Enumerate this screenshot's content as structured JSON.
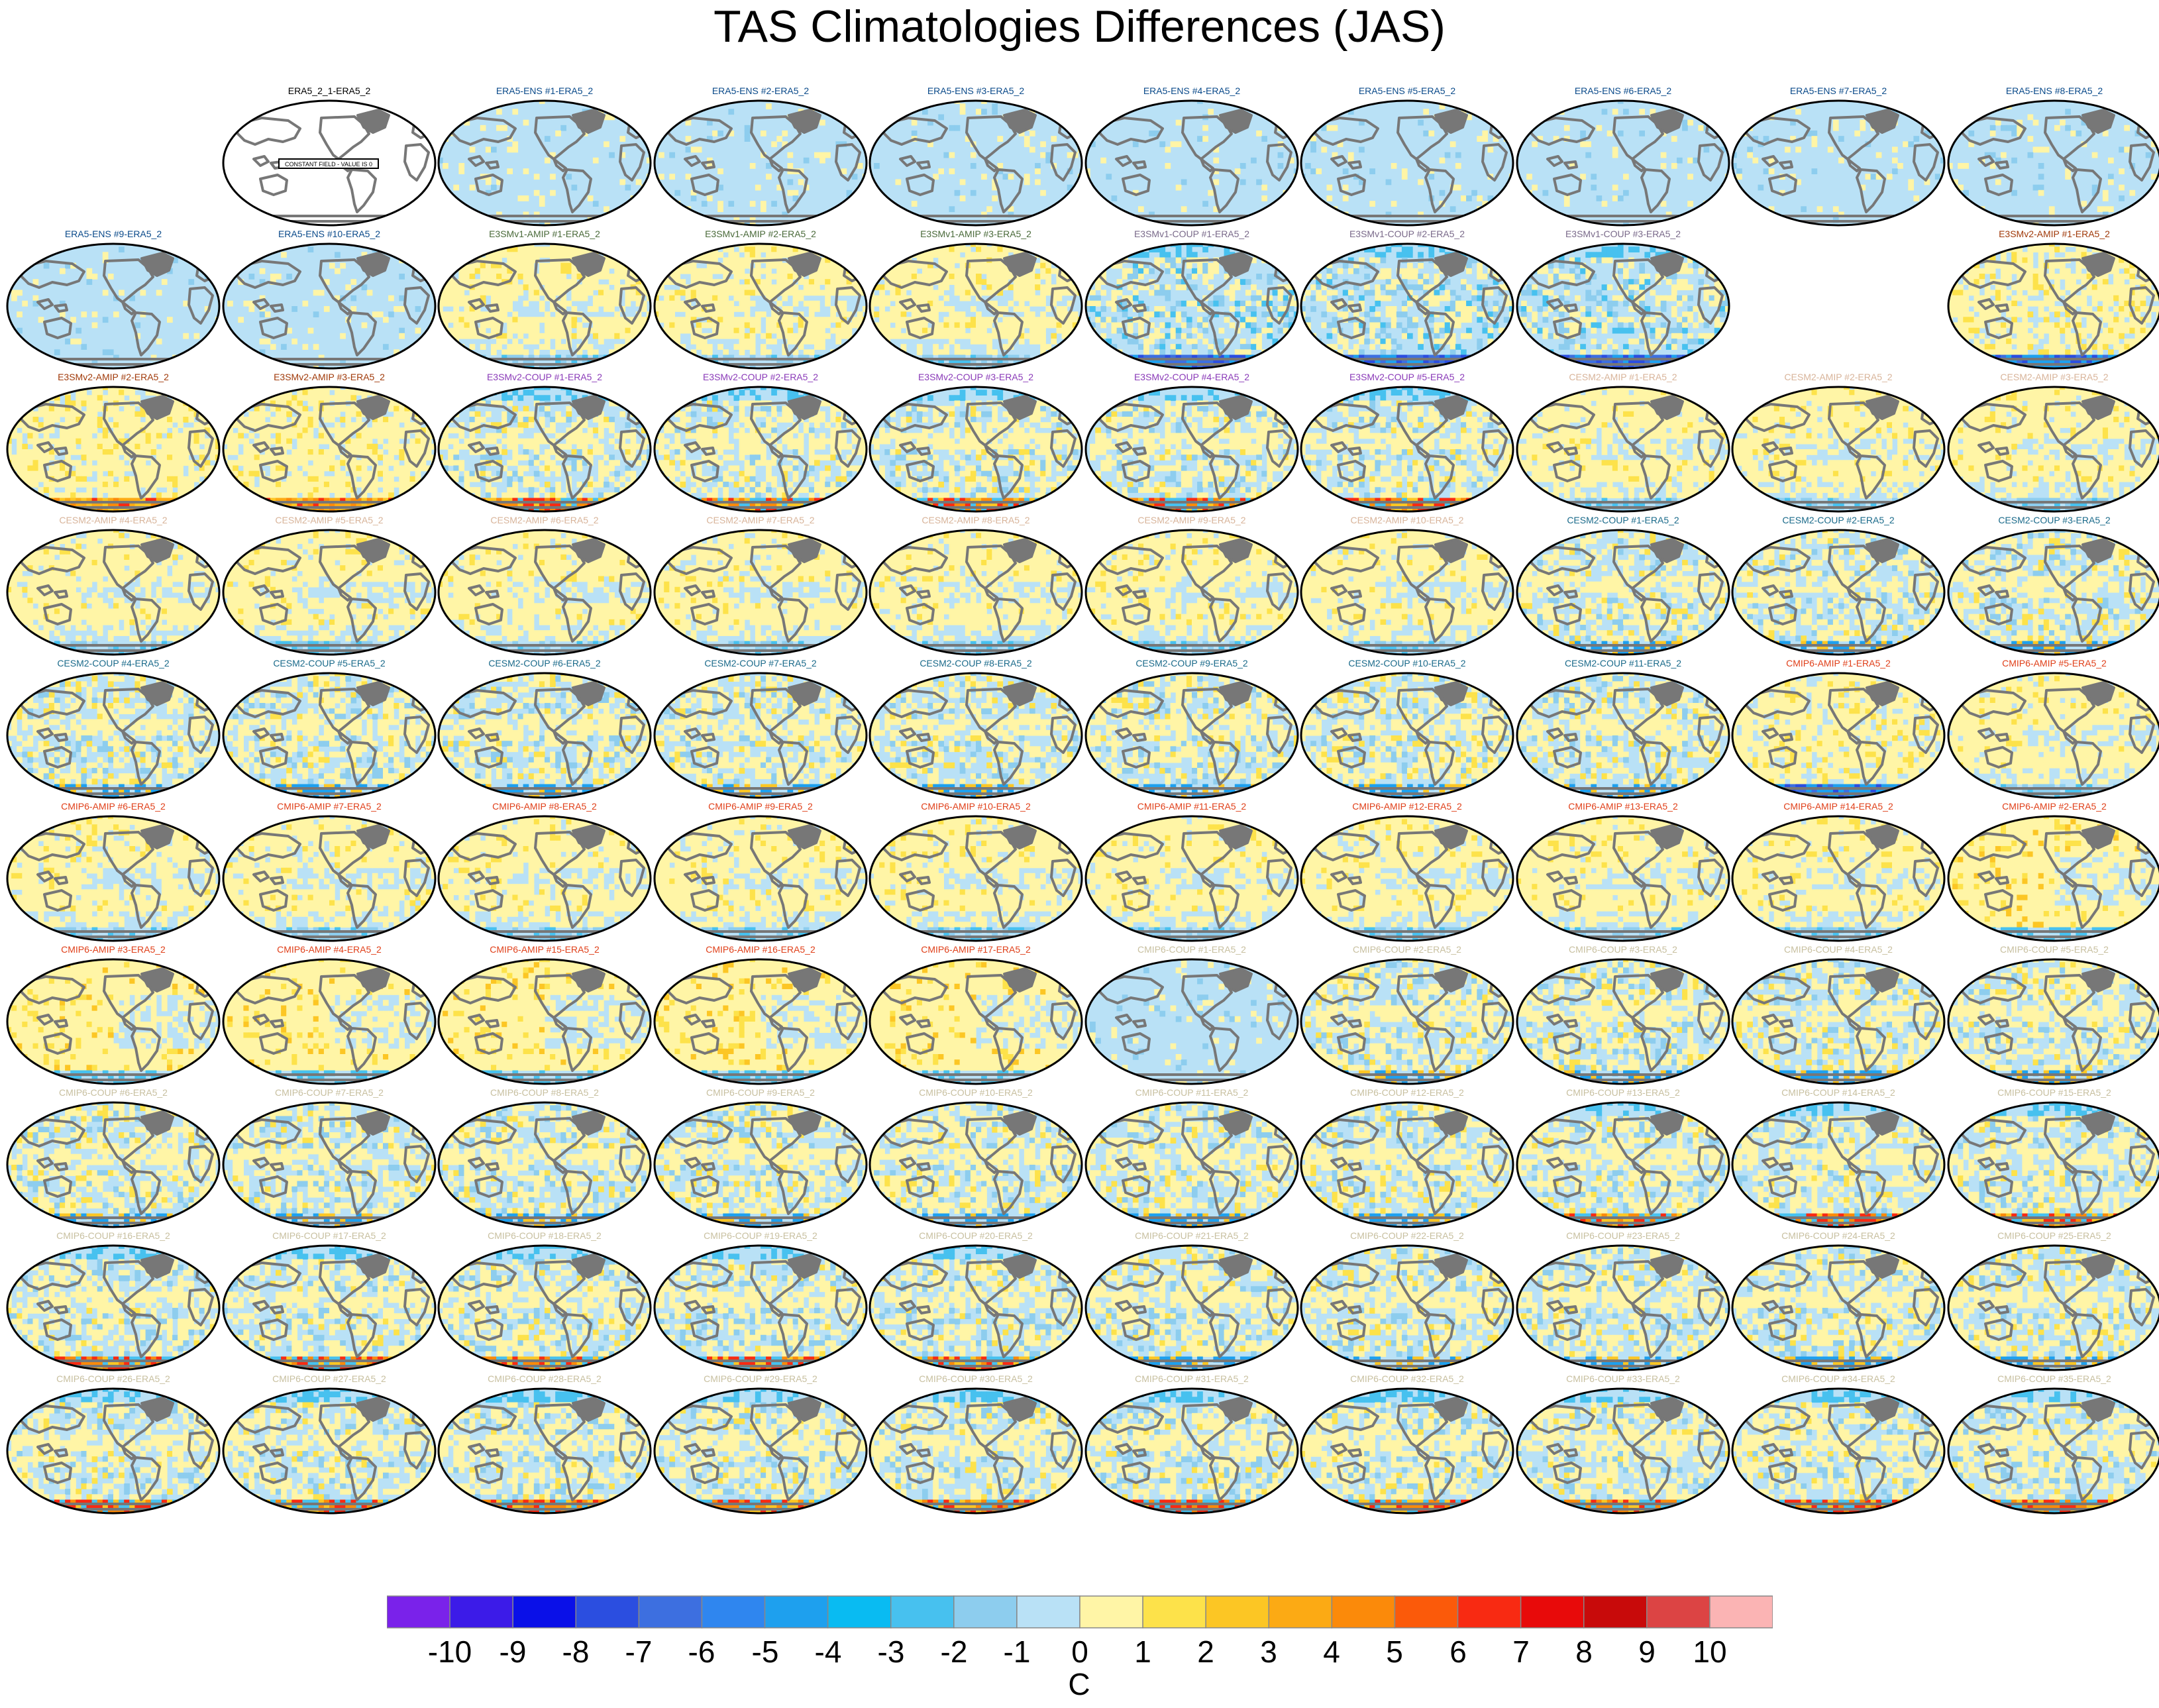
{
  "title": "TAS Climatologies Differences (JAS)",
  "units": "C",
  "constant_field_note": "CONSTANT FIELD - VALUE IS 0",
  "colorbar": {
    "ticks": [
      "-10",
      "-9",
      "-8",
      "-7",
      "-6",
      "-5",
      "-4",
      "-3",
      "-2",
      "-1",
      "0",
      "1",
      "2",
      "3",
      "4",
      "5",
      "6",
      "7",
      "8",
      "9",
      "10"
    ],
    "colors": [
      "#7a22ea",
      "#3c1be8",
      "#0a10e8",
      "#2b4ee0",
      "#3d6fe0",
      "#2f86ef",
      "#1ea0ee",
      "#09bbf2",
      "#47c1ef",
      "#8dcdee",
      "#b9e1f6",
      "#fff5a6",
      "#fde24a",
      "#fcc624",
      "#fcaa14",
      "#fb8a0a",
      "#fb5a0a",
      "#f82a12",
      "#e80a0a",
      "#c80a0a",
      "#dc4444",
      "#fbb4b4"
    ]
  },
  "palette": {
    "ERA5": "#000000",
    "ENS": "#0a4a8a",
    "E3SMv1-AMIP": "#4a6a3a",
    "E3SMv1-COUP": "#7a6a8a",
    "E3SMv2-AMIP": "#a03a0a",
    "E3SMv2-COUP": "#8a3ab8",
    "CESM2-AMIP": "#d8b49a",
    "CESM2-COUP": "#1a6a8a",
    "CMIP6-AMIP": "#e0401a",
    "CMIP6-COUP": "#c8c0a0"
  },
  "panels": [
    {
      "label": "ERA5_2_1-ERA5_2",
      "group": "ERA5",
      "tone": "empty"
    },
    {
      "label": "ERA5-ENS   #1-ERA5_2",
      "group": "ENS",
      "tone": "cool"
    },
    {
      "label": "ERA5-ENS   #2-ERA5_2",
      "group": "ENS",
      "tone": "cool"
    },
    {
      "label": "ERA5-ENS   #3-ERA5_2",
      "group": "ENS",
      "tone": "cool"
    },
    {
      "label": "ERA5-ENS   #4-ERA5_2",
      "group": "ENS",
      "tone": "cool"
    },
    {
      "label": "ERA5-ENS   #5-ERA5_2",
      "group": "ENS",
      "tone": "cool"
    },
    {
      "label": "ERA5-ENS   #6-ERA5_2",
      "group": "ENS",
      "tone": "cool"
    },
    {
      "label": "ERA5-ENS   #7-ERA5_2",
      "group": "ENS",
      "tone": "cool"
    },
    {
      "label": "ERA5-ENS   #8-ERA5_2",
      "group": "ENS",
      "tone": "cool"
    },
    {
      "label": "ERA5-ENS   #9-ERA5_2",
      "group": "ENS",
      "tone": "cool"
    },
    {
      "label": "ERA5-ENS   #10-ERA5_2",
      "group": "ENS",
      "tone": "cool"
    },
    {
      "label": "E3SMv1-AMIP #1-ERA5_2",
      "group": "E3SMv1-AMIP",
      "tone": "warm"
    },
    {
      "label": "E3SMv1-AMIP #2-ERA5_2",
      "group": "E3SMv1-AMIP",
      "tone": "warm"
    },
    {
      "label": "E3SMv1-AMIP #3-ERA5_2",
      "group": "E3SMv1-AMIP",
      "tone": "warm"
    },
    {
      "label": "E3SMv1-COUP #1-ERA5_2",
      "group": "E3SMv1-COUP",
      "tone": "mixed-cold"
    },
    {
      "label": "E3SMv1-COUP #2-ERA5_2",
      "group": "E3SMv1-COUP",
      "tone": "mixed-cold"
    },
    {
      "label": "E3SMv1-COUP #3-ERA5_2",
      "group": "E3SMv1-COUP",
      "tone": "mixed-cold"
    },
    null,
    {
      "label": "E3SMv2-AMIP #1-ERA5_2",
      "group": "E3SMv2-AMIP",
      "tone": "warm-cold"
    },
    {
      "label": "E3SMv2-AMIP #2-ERA5_2",
      "group": "E3SMv2-AMIP",
      "tone": "warm-hot"
    },
    {
      "label": "E3SMv2-AMIP #3-ERA5_2",
      "group": "E3SMv2-AMIP",
      "tone": "warm-hot"
    },
    {
      "label": "E3SMv2-COUP #1-ERA5_2",
      "group": "E3SMv2-COUP",
      "tone": "mixed-hot"
    },
    {
      "label": "E3SMv2-COUP #2-ERA5_2",
      "group": "E3SMv2-COUP",
      "tone": "mixed-hot"
    },
    {
      "label": "E3SMv2-COUP #3-ERA5_2",
      "group": "E3SMv2-COUP",
      "tone": "mixed-hot"
    },
    {
      "label": "E3SMv2-COUP #4-ERA5_2",
      "group": "E3SMv2-COUP",
      "tone": "mixed-hot"
    },
    {
      "label": "E3SMv2-COUP #5-ERA5_2",
      "group": "E3SMv2-COUP",
      "tone": "mixed-hot"
    },
    {
      "label": "CESM2-AMIP  #1-ERA5_2",
      "group": "CESM2-AMIP",
      "tone": "warm"
    },
    {
      "label": "CESM2-AMIP  #2-ERA5_2",
      "group": "CESM2-AMIP",
      "tone": "warm"
    },
    {
      "label": "CESM2-AMIP  #3-ERA5_2",
      "group": "CESM2-AMIP",
      "tone": "warm"
    },
    {
      "label": "CESM2-AMIP  #4-ERA5_2",
      "group": "CESM2-AMIP",
      "tone": "warm"
    },
    {
      "label": "CESM2-AMIP  #5-ERA5_2",
      "group": "CESM2-AMIP",
      "tone": "warm"
    },
    {
      "label": "CESM2-AMIP  #6-ERA5_2",
      "group": "CESM2-AMIP",
      "tone": "warm"
    },
    {
      "label": "CESM2-AMIP  #7-ERA5_2",
      "group": "CESM2-AMIP",
      "tone": "warm"
    },
    {
      "label": "CESM2-AMIP  #8-ERA5_2",
      "group": "CESM2-AMIP",
      "tone": "warm"
    },
    {
      "label": "CESM2-AMIP  #9-ERA5_2",
      "group": "CESM2-AMIP",
      "tone": "warm"
    },
    {
      "label": "CESM2-AMIP  #10-ERA5_2",
      "group": "CESM2-AMIP",
      "tone": "warm"
    },
    {
      "label": "CESM2-COUP  #1-ERA5_2",
      "group": "CESM2-COUP",
      "tone": "mixed"
    },
    {
      "label": "CESM2-COUP  #2-ERA5_2",
      "group": "CESM2-COUP",
      "tone": "mixed"
    },
    {
      "label": "CESM2-COUP  #3-ERA5_2",
      "group": "CESM2-COUP",
      "tone": "mixed"
    },
    {
      "label": "CESM2-COUP  #4-ERA5_2",
      "group": "CESM2-COUP",
      "tone": "mixed"
    },
    {
      "label": "CESM2-COUP  #5-ERA5_2",
      "group": "CESM2-COUP",
      "tone": "mixed"
    },
    {
      "label": "CESM2-COUP  #6-ERA5_2",
      "group": "CESM2-COUP",
      "tone": "mixed"
    },
    {
      "label": "CESM2-COUP  #7-ERA5_2",
      "group": "CESM2-COUP",
      "tone": "mixed"
    },
    {
      "label": "CESM2-COUP  #8-ERA5_2",
      "group": "CESM2-COUP",
      "tone": "mixed"
    },
    {
      "label": "CESM2-COUP  #9-ERA5_2",
      "group": "CESM2-COUP",
      "tone": "mixed"
    },
    {
      "label": "CESM2-COUP  #10-ERA5_2",
      "group": "CESM2-COUP",
      "tone": "mixed"
    },
    {
      "label": "CESM2-COUP  #11-ERA5_2",
      "group": "CESM2-COUP",
      "tone": "mixed"
    },
    {
      "label": "CMIP6-AMIP  #1-ERA5_2",
      "group": "CMIP6-AMIP",
      "tone": "warm-cold"
    },
    {
      "label": "CMIP6-AMIP  #5-ERA5_2",
      "group": "CMIP6-AMIP",
      "tone": "warm"
    },
    {
      "label": "CMIP6-AMIP  #6-ERA5_2",
      "group": "CMIP6-AMIP",
      "tone": "warm"
    },
    {
      "label": "CMIP6-AMIP  #7-ERA5_2",
      "group": "CMIP6-AMIP",
      "tone": "warm"
    },
    {
      "label": "CMIP6-AMIP  #8-ERA5_2",
      "group": "CMIP6-AMIP",
      "tone": "warm"
    },
    {
      "label": "CMIP6-AMIP  #9-ERA5_2",
      "group": "CMIP6-AMIP",
      "tone": "warm"
    },
    {
      "label": "CMIP6-AMIP  #10-ERA5_2",
      "group": "CMIP6-AMIP",
      "tone": "warm"
    },
    {
      "label": "CMIP6-AMIP  #11-ERA5_2",
      "group": "CMIP6-AMIP",
      "tone": "warm"
    },
    {
      "label": "CMIP6-AMIP  #12-ERA5_2",
      "group": "CMIP6-AMIP",
      "tone": "warm"
    },
    {
      "label": "CMIP6-AMIP  #13-ERA5_2",
      "group": "CMIP6-AMIP",
      "tone": "warm"
    },
    {
      "label": "CMIP6-AMIP  #14-ERA5_2",
      "group": "CMIP6-AMIP",
      "tone": "warm"
    },
    {
      "label": "CMIP6-AMIP  #2-ERA5_2",
      "group": "CMIP6-AMIP",
      "tone": "hot"
    },
    {
      "label": "CMIP6-AMIP  #3-ERA5_2",
      "group": "CMIP6-AMIP",
      "tone": "hot"
    },
    {
      "label": "CMIP6-AMIP  #4-ERA5_2",
      "group": "CMIP6-AMIP",
      "tone": "hot"
    },
    {
      "label": "CMIP6-AMIP  #15-ERA5_2",
      "group": "CMIP6-AMIP",
      "tone": "hot"
    },
    {
      "label": "CMIP6-AMIP  #16-ERA5_2",
      "group": "CMIP6-AMIP",
      "tone": "hot"
    },
    {
      "label": "CMIP6-AMIP  #17-ERA5_2",
      "group": "CMIP6-AMIP",
      "tone": "hot"
    },
    {
      "label": "CMIP6-COUP  #1-ERA5_2",
      "group": "CMIP6-COUP",
      "tone": "cool"
    },
    {
      "label": "CMIP6-COUP  #2-ERA5_2",
      "group": "CMIP6-COUP",
      "tone": "mixed"
    },
    {
      "label": "CMIP6-COUP  #3-ERA5_2",
      "group": "CMIP6-COUP",
      "tone": "mixed"
    },
    {
      "label": "CMIP6-COUP  #4-ERA5_2",
      "group": "CMIP6-COUP",
      "tone": "mixed"
    },
    {
      "label": "CMIP6-COUP  #5-ERA5_2",
      "group": "CMIP6-COUP",
      "tone": "mixed"
    },
    {
      "label": "CMIP6-COUP  #6-ERA5_2",
      "group": "CMIP6-COUP",
      "tone": "mixed"
    },
    {
      "label": "CMIP6-COUP  #7-ERA5_2",
      "group": "CMIP6-COUP",
      "tone": "mixed"
    },
    {
      "label": "CMIP6-COUP  #8-ERA5_2",
      "group": "CMIP6-COUP",
      "tone": "mixed"
    },
    {
      "label": "CMIP6-COUP  #9-ERA5_2",
      "group": "CMIP6-COUP",
      "tone": "mixed"
    },
    {
      "label": "CMIP6-COUP  #10-ERA5_2",
      "group": "CMIP6-COUP",
      "tone": "mixed"
    },
    {
      "label": "CMIP6-COUP  #11-ERA5_2",
      "group": "CMIP6-COUP",
      "tone": "mixed"
    },
    {
      "label": "CMIP6-COUP  #12-ERA5_2",
      "group": "CMIP6-COUP",
      "tone": "mixed"
    },
    {
      "label": "CMIP6-COUP  #13-ERA5_2",
      "group": "CMIP6-COUP",
      "tone": "mixed-hot"
    },
    {
      "label": "CMIP6-COUP  #14-ERA5_2",
      "group": "CMIP6-COUP",
      "tone": "mixed-hot"
    },
    {
      "label": "CMIP6-COUP  #15-ERA5_2",
      "group": "CMIP6-COUP",
      "tone": "mixed-hot"
    },
    {
      "label": "CMIP6-COUP  #16-ERA5_2",
      "group": "CMIP6-COUP",
      "tone": "mixed-hot"
    },
    {
      "label": "CMIP6-COUP  #17-ERA5_2",
      "group": "CMIP6-COUP",
      "tone": "mixed-hot"
    },
    {
      "label": "CMIP6-COUP  #18-ERA5_2",
      "group": "CMIP6-COUP",
      "tone": "mixed-hot"
    },
    {
      "label": "CMIP6-COUP  #19-ERA5_2",
      "group": "CMIP6-COUP",
      "tone": "mixed-hot"
    },
    {
      "label": "CMIP6-COUP  #20-ERA5_2",
      "group": "CMIP6-COUP",
      "tone": "mixed-hot"
    },
    {
      "label": "CMIP6-COUP  #21-ERA5_2",
      "group": "CMIP6-COUP",
      "tone": "mixed"
    },
    {
      "label": "CMIP6-COUP  #22-ERA5_2",
      "group": "CMIP6-COUP",
      "tone": "mixed"
    },
    {
      "label": "CMIP6-COUP  #23-ERA5_2",
      "group": "CMIP6-COUP",
      "tone": "mixed"
    },
    {
      "label": "CMIP6-COUP  #24-ERA5_2",
      "group": "CMIP6-COUP",
      "tone": "mixed"
    },
    {
      "label": "CMIP6-COUP  #25-ERA5_2",
      "group": "CMIP6-COUP",
      "tone": "mixed"
    },
    {
      "label": "CMIP6-COUP  #26-ERA5_2",
      "group": "CMIP6-COUP",
      "tone": "mixed-hot"
    },
    {
      "label": "CMIP6-COUP  #27-ERA5_2",
      "group": "CMIP6-COUP",
      "tone": "mixed-hot"
    },
    {
      "label": "CMIP6-COUP  #28-ERA5_2",
      "group": "CMIP6-COUP",
      "tone": "mixed-hot"
    },
    {
      "label": "CMIP6-COUP  #29-ERA5_2",
      "group": "CMIP6-COUP",
      "tone": "mixed-hot"
    },
    {
      "label": "CMIP6-COUP  #30-ERA5_2",
      "group": "CMIP6-COUP",
      "tone": "mixed-hot"
    },
    {
      "label": "CMIP6-COUP  #31-ERA5_2",
      "group": "CMIP6-COUP",
      "tone": "mixed-hot"
    },
    {
      "label": "CMIP6-COUP  #32-ERA5_2",
      "group": "CMIP6-COUP",
      "tone": "mixed-hot"
    },
    {
      "label": "CMIP6-COUP  #33-ERA5_2",
      "group": "CMIP6-COUP",
      "tone": "mixed-hot"
    },
    {
      "label": "CMIP6-COUP  #34-ERA5_2",
      "group": "CMIP6-COUP",
      "tone": "mixed-hot"
    },
    {
      "label": "CMIP6-COUP  #35-ERA5_2",
      "group": "CMIP6-COUP",
      "tone": "mixed-hot"
    }
  ]
}
